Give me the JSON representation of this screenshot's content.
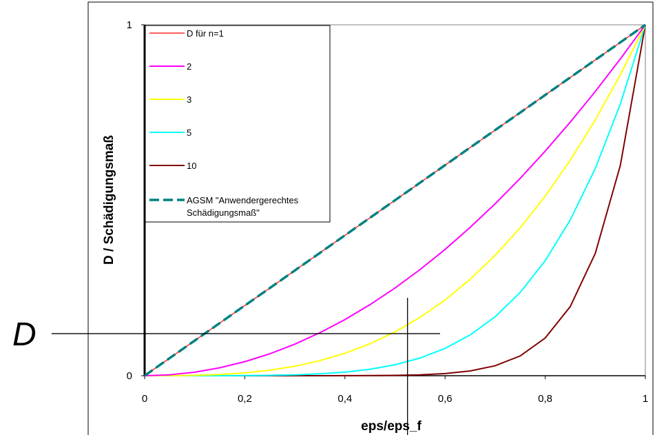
{
  "chart_data": {
    "type": "line",
    "xlabel": "eps/eps_f",
    "ylabel": "D / Schädigungsmaß",
    "xlim": [
      0,
      1
    ],
    "ylim": [
      0,
      1
    ],
    "x_ticks": [
      "0",
      "0,2",
      "0,4",
      "0,6",
      "0,8",
      "1"
    ],
    "y_ticks": [
      "0",
      "1"
    ],
    "legend_position": "top-left",
    "series": [
      {
        "name": "D für n=1",
        "color": "#ff0000",
        "dashed": false,
        "exponent": 1
      },
      {
        "name": "2",
        "color": "#ff00ff",
        "dashed": false,
        "exponent": 2
      },
      {
        "name": "3",
        "color": "#ffff00",
        "dashed": false,
        "exponent": 3
      },
      {
        "name": "5",
        "color": "#00ffff",
        "dashed": false,
        "exponent": 5
      },
      {
        "name": "10",
        "color": "#800000",
        "dashed": false,
        "exponent": 10
      },
      {
        "name": "AGSM \"Anwendergerechtes Schädigungsmaß\"",
        "color": "#008080",
        "dashed": true,
        "exponent": 1
      }
    ],
    "annotation": {
      "label": "D",
      "d_value": 0.12,
      "x_line_value": 0.525
    }
  }
}
